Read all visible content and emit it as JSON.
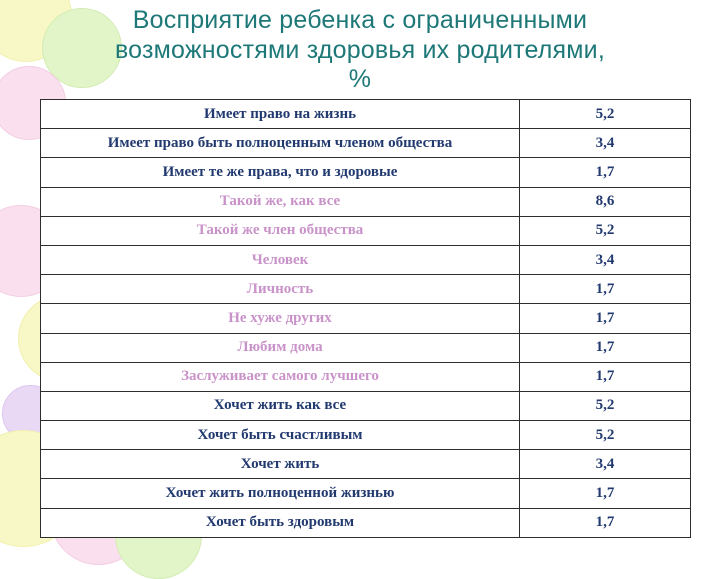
{
  "slide": {
    "title_lines": [
      "Восприятие ребенка с ограниченными",
      "возможностями здоровья их родителями,",
      "%"
    ],
    "title_color": "#1e7878"
  },
  "chart_data": {
    "type": "table",
    "title": "Восприятие ребенка с ограниченными возможностями здоровья их родителями, %",
    "value_unit": "%",
    "colors": {
      "navy": "#223a70",
      "pink": "#c993c9",
      "value_text": "#223a70",
      "border": "#2e2e2e"
    },
    "rows": [
      {
        "label": "Имеет право на жизнь",
        "value": "5,2",
        "group": "navy"
      },
      {
        "label": "Имеет право быть полноценным членом общества",
        "value": "3,4",
        "group": "navy"
      },
      {
        "label": "Имеет те же права, что и здоровые",
        "value": "1,7",
        "group": "navy"
      },
      {
        "label": "Такой же, как все",
        "value": "8,6",
        "group": "pink"
      },
      {
        "label": "Такой же член общества",
        "value": "5,2",
        "group": "pink"
      },
      {
        "label": "Человек",
        "value": "3,4",
        "group": "pink"
      },
      {
        "label": "Личность",
        "value": "1,7",
        "group": "pink"
      },
      {
        "label": "Не хуже других",
        "value": "1,7",
        "group": "pink"
      },
      {
        "label": "Любим дома",
        "value": "1,7",
        "group": "pink"
      },
      {
        "label": "Заслуживает самого лучшего",
        "value": "1,7",
        "group": "pink"
      },
      {
        "label": "Хочет жить как все",
        "value": "5,2",
        "group": "navy"
      },
      {
        "label": "Хочет быть счастливым",
        "value": "5,2",
        "group": "navy"
      },
      {
        "label": "Хочет жить",
        "value": "3,4",
        "group": "navy"
      },
      {
        "label": "Хочет жить полноценной жизнью",
        "value": "1,7",
        "group": "navy"
      },
      {
        "label": "Хочет быть здоровым",
        "value": "1,7",
        "group": "navy"
      }
    ]
  }
}
